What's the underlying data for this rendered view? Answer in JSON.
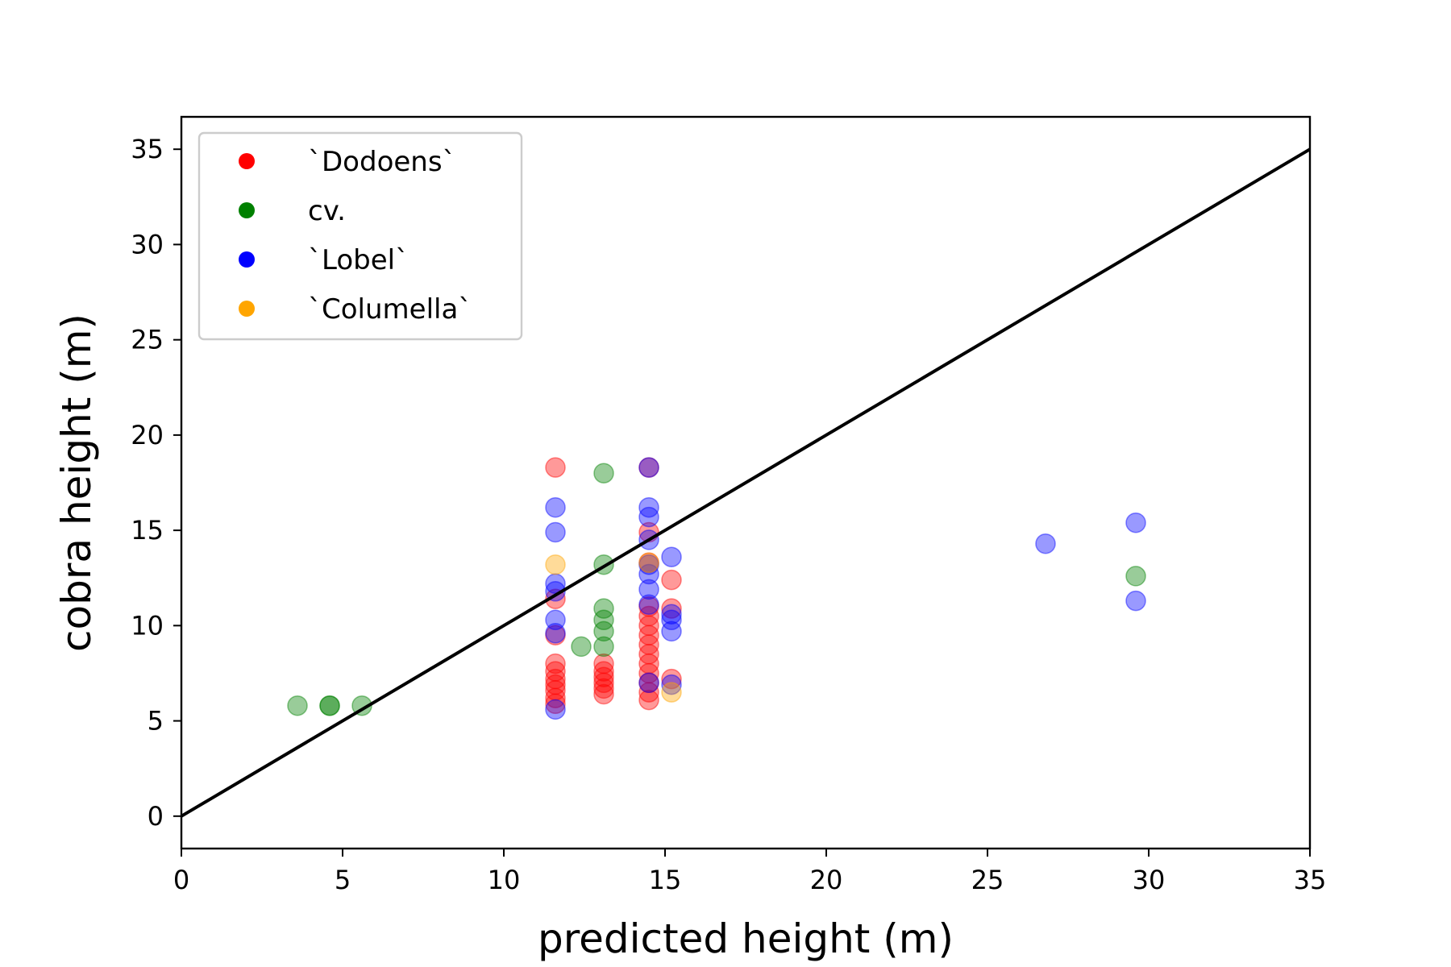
{
  "chart_data": {
    "type": "scatter",
    "title": "",
    "xlabel": "predicted height (m)",
    "ylabel": "cobra height (m)",
    "xlim": [
      0,
      35
    ],
    "ylim": [
      -1.7,
      36.7
    ],
    "xticks": [
      0,
      5,
      10,
      15,
      20,
      25,
      30,
      35
    ],
    "yticks": [
      0,
      5,
      10,
      15,
      20,
      25,
      30,
      35
    ],
    "grid": false,
    "legend_position": "top-left",
    "reference_line": {
      "x": [
        0,
        35
      ],
      "y": [
        0,
        35
      ],
      "color": "#000000"
    },
    "series": [
      {
        "name": "`Dodoens`",
        "color": "#ff0000",
        "points": [
          [
            11.6,
            18.3
          ],
          [
            11.6,
            11.4
          ],
          [
            11.6,
            9.5
          ],
          [
            11.6,
            8.0
          ],
          [
            11.6,
            7.6
          ],
          [
            11.6,
            7.2
          ],
          [
            11.6,
            6.9
          ],
          [
            11.6,
            6.6
          ],
          [
            11.6,
            6.2
          ],
          [
            11.6,
            5.9
          ],
          [
            13.1,
            8.0
          ],
          [
            13.1,
            7.6
          ],
          [
            13.1,
            7.3
          ],
          [
            13.1,
            7.0
          ],
          [
            13.1,
            6.7
          ],
          [
            13.1,
            6.4
          ],
          [
            14.5,
            18.3
          ],
          [
            14.5,
            14.9
          ],
          [
            14.5,
            13.3
          ],
          [
            14.5,
            11.0
          ],
          [
            14.5,
            10.5
          ],
          [
            14.5,
            10.0
          ],
          [
            14.5,
            9.5
          ],
          [
            14.5,
            9.0
          ],
          [
            14.5,
            8.5
          ],
          [
            14.5,
            8.0
          ],
          [
            14.5,
            7.5
          ],
          [
            14.5,
            7.0
          ],
          [
            14.5,
            6.5
          ],
          [
            14.5,
            6.1
          ],
          [
            15.2,
            12.4
          ],
          [
            15.2,
            10.9
          ],
          [
            15.2,
            7.2
          ]
        ]
      },
      {
        "name": "cv.",
        "color": "#008000",
        "points": [
          [
            3.6,
            5.8
          ],
          [
            4.6,
            5.8
          ],
          [
            4.6,
            5.8
          ],
          [
            5.6,
            5.8
          ],
          [
            12.4,
            8.9
          ],
          [
            13.1,
            18.0
          ],
          [
            13.1,
            13.2
          ],
          [
            13.1,
            10.9
          ],
          [
            13.1,
            10.3
          ],
          [
            13.1,
            9.7
          ],
          [
            13.1,
            8.9
          ],
          [
            29.6,
            12.6
          ]
        ]
      },
      {
        "name": "`Lobel`",
        "color": "#0000ff",
        "points": [
          [
            11.6,
            16.2
          ],
          [
            11.6,
            14.9
          ],
          [
            11.6,
            12.2
          ],
          [
            11.6,
            11.8
          ],
          [
            11.6,
            10.3
          ],
          [
            11.6,
            9.6
          ],
          [
            11.6,
            5.6
          ],
          [
            14.5,
            18.3
          ],
          [
            14.5,
            16.2
          ],
          [
            14.5,
            15.7
          ],
          [
            14.5,
            14.5
          ],
          [
            14.5,
            13.2
          ],
          [
            14.5,
            12.7
          ],
          [
            14.5,
            11.9
          ],
          [
            14.5,
            11.1
          ],
          [
            14.5,
            7.0
          ],
          [
            15.2,
            13.6
          ],
          [
            15.2,
            10.6
          ],
          [
            15.2,
            10.3
          ],
          [
            15.2,
            9.7
          ],
          [
            15.2,
            6.9
          ],
          [
            26.8,
            14.3
          ],
          [
            29.6,
            15.4
          ],
          [
            29.6,
            11.3
          ]
        ]
      },
      {
        "name": "`Columella`",
        "color": "#ffa500",
        "points": [
          [
            11.6,
            13.2
          ],
          [
            14.5,
            13.3
          ],
          [
            15.2,
            6.5
          ]
        ]
      }
    ]
  }
}
